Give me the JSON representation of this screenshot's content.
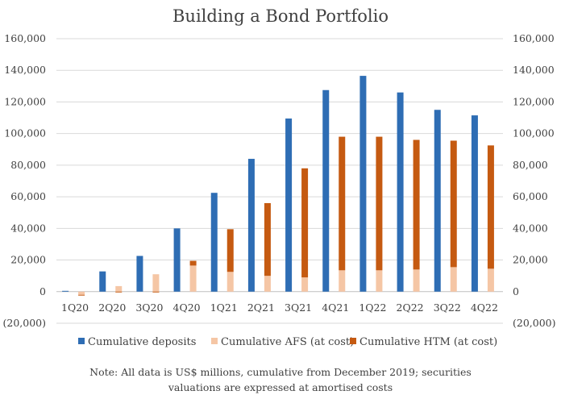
{
  "chart_data": {
    "type": "bar",
    "title": "Building a Bond Portfolio",
    "categories": [
      "1Q20",
      "2Q20",
      "3Q20",
      "4Q20",
      "1Q21",
      "2Q21",
      "3Q21",
      "4Q21",
      "1Q22",
      "2Q22",
      "3Q22",
      "4Q22"
    ],
    "ylim": [
      -20000,
      160000
    ],
    "yticks": [
      -20000,
      0,
      20000,
      40000,
      60000,
      80000,
      100000,
      120000,
      140000,
      160000
    ],
    "ytick_labels": [
      "(20,000)",
      "0",
      "20,000",
      "40,000",
      "60,000",
      "80,000",
      "100,000",
      "120,000",
      "140,000",
      "160,000"
    ],
    "secondary_axis": true,
    "grid": true,
    "legend_position": "bottom",
    "stacked_group": [
      "Cumulative AFS (at cost)",
      "Cumulative HTM (at cost)"
    ],
    "series": [
      {
        "name": "Cumulative deposits",
        "color": "#2E6DB4",
        "values": [
          500,
          12800,
          22600,
          40000,
          62500,
          84000,
          109500,
          127500,
          136500,
          126000,
          115000,
          111500
        ]
      },
      {
        "name": "Cumulative AFS (at cost)",
        "color": "#F5C6A5",
        "values": [
          -2000,
          3500,
          11000,
          16500,
          12500,
          10000,
          9000,
          13500,
          13500,
          14000,
          15500,
          14500
        ]
      },
      {
        "name": "Cumulative HTM (at cost)",
        "color": "#C55A11",
        "values": [
          -500,
          -500,
          -500,
          3000,
          27000,
          46000,
          69000,
          84500,
          84500,
          82000,
          80000,
          78000
        ]
      }
    ],
    "note_lines": [
      "Note: All data is US$ millions, cumulative from December 2019; securities",
      "valuations are expressed at amortised costs"
    ]
  }
}
